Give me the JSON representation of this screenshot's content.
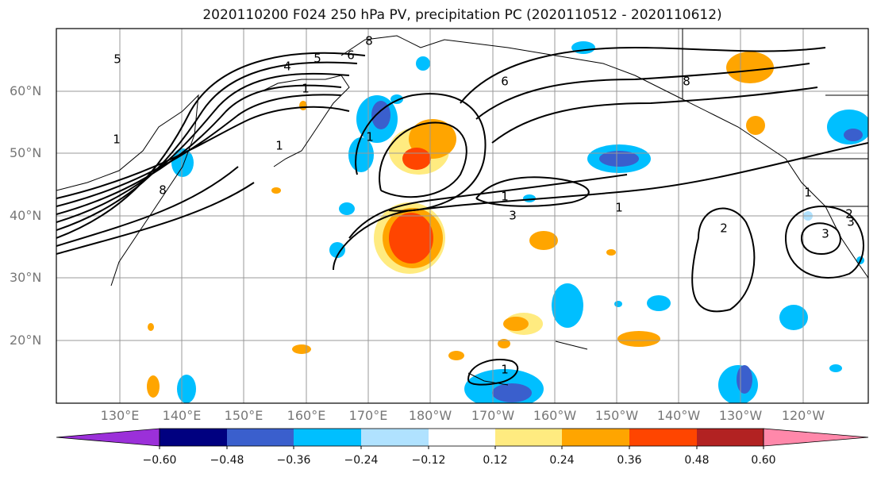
{
  "title": "2020110200 F024 250 hPa PV, precipitation PC (2020110512 - 2020110612)",
  "lat_labels": [
    "60°N",
    "50°N",
    "40°N",
    "30°N",
    "20°N"
  ],
  "lon_labels": [
    "130°E",
    "140°E",
    "150°E",
    "160°E",
    "170°E",
    "180°W",
    "170°W",
    "160°W",
    "150°W",
    "140°W",
    "130°W",
    "120°W"
  ],
  "contour_labels": [
    "4",
    "5",
    "6",
    "8",
    "1",
    "1",
    "1",
    "1",
    "1",
    "3",
    "2",
    "3",
    "8",
    "6",
    "5",
    "1",
    "8",
    "1",
    "2",
    "3",
    "1"
  ],
  "colorbar": {
    "ticks": [
      "−0.60",
      "−0.48",
      "−0.36",
      "−0.24",
      "−0.12",
      "0.12",
      "0.24",
      "0.36",
      "0.48",
      "0.60"
    ],
    "colors": [
      "#9b30d9",
      "#000080",
      "#3a5fcd",
      "#00bfff",
      "#b0e2ff",
      "#ffffff",
      "#ffeb80",
      "#ffa500",
      "#ff4500",
      "#b22222",
      "#ff88aa"
    ]
  },
  "colors": {
    "pos_low": "#ffeb80",
    "pos_mid": "#ffa500",
    "pos_high": "#ff4500",
    "neg_low": "#b0e2ff",
    "neg_mid": "#00bfff",
    "neg_high": "#3a5fcd"
  }
}
